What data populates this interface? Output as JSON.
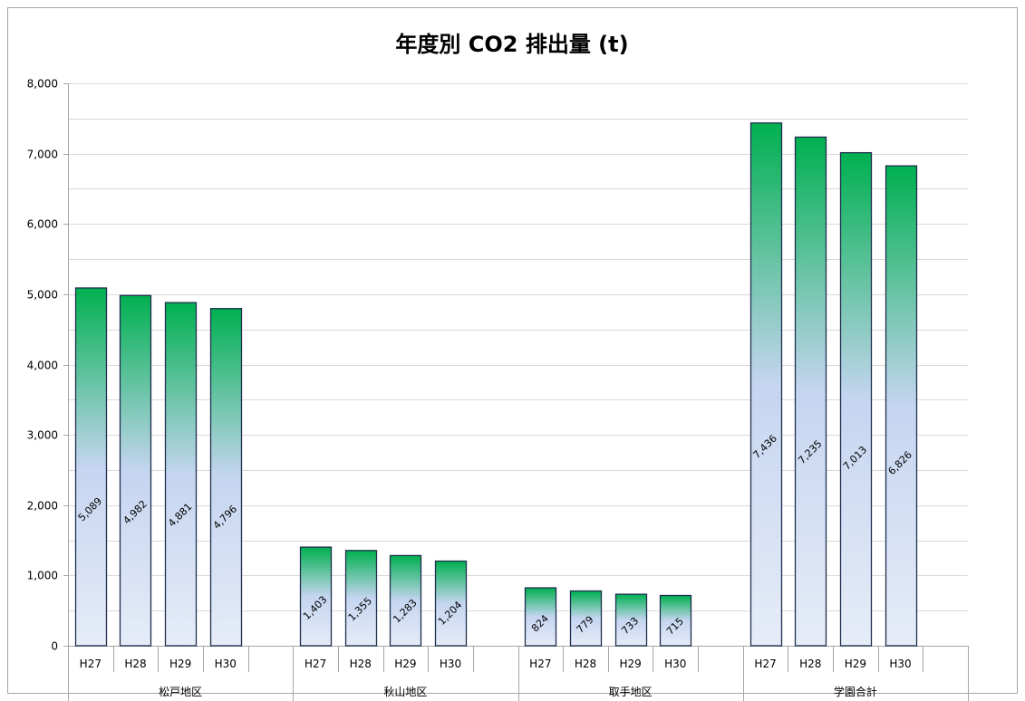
{
  "chart_data": {
    "type": "bar",
    "title": "年度別 CO2 排出量 (t)",
    "xlabel": "",
    "ylabel": "",
    "ylim": [
      0,
      8000
    ],
    "yticks": [
      0,
      1000,
      2000,
      3000,
      4000,
      5000,
      6000,
      7000,
      8000
    ],
    "ytick_labels": [
      "0",
      "1,000",
      "2,000",
      "3,000",
      "4,000",
      "5,000",
      "6,000",
      "7,000",
      "8,000"
    ],
    "grid": true,
    "legend": false,
    "colors": {
      "bar_top": "#00b050",
      "bar_mid": "#c5d5f0",
      "bar_bottom": "#e6ecf8",
      "bar_border": "#1f2f4f",
      "grid": "#d9d9d9",
      "axis": "#a6a6a6"
    },
    "year_labels": [
      "H27",
      "H28",
      "H29",
      "H30"
    ],
    "groups": [
      {
        "name": "松戸地区",
        "bars": [
          {
            "label": "H27",
            "value": 5089,
            "data_label": "5,089"
          },
          {
            "label": "H28",
            "value": 4982,
            "data_label": "4,982"
          },
          {
            "label": "H29",
            "value": 4881,
            "data_label": "4,881"
          },
          {
            "label": "H30",
            "value": 4796,
            "data_label": "4,796"
          }
        ]
      },
      {
        "name": "秋山地区",
        "bars": [
          {
            "label": "H27",
            "value": 1403,
            "data_label": "1,403"
          },
          {
            "label": "H28",
            "value": 1355,
            "data_label": "1,355"
          },
          {
            "label": "H29",
            "value": 1283,
            "data_label": "1,283"
          },
          {
            "label": "H30",
            "value": 1204,
            "data_label": "1,204"
          }
        ]
      },
      {
        "name": "取手地区",
        "bars": [
          {
            "label": "H27",
            "value": 824,
            "data_label": "824"
          },
          {
            "label": "H28",
            "value": 779,
            "data_label": "779"
          },
          {
            "label": "H29",
            "value": 733,
            "data_label": "733"
          },
          {
            "label": "H30",
            "value": 715,
            "data_label": "715"
          }
        ]
      },
      {
        "name": "学園合計",
        "bars": [
          {
            "label": "H27",
            "value": 7436,
            "data_label": "7,436"
          },
          {
            "label": "H28",
            "value": 7235,
            "data_label": "7,235"
          },
          {
            "label": "H29",
            "value": 7013,
            "data_label": "7,013"
          },
          {
            "label": "H30",
            "value": 6826,
            "data_label": "6,826"
          }
        ]
      }
    ]
  }
}
